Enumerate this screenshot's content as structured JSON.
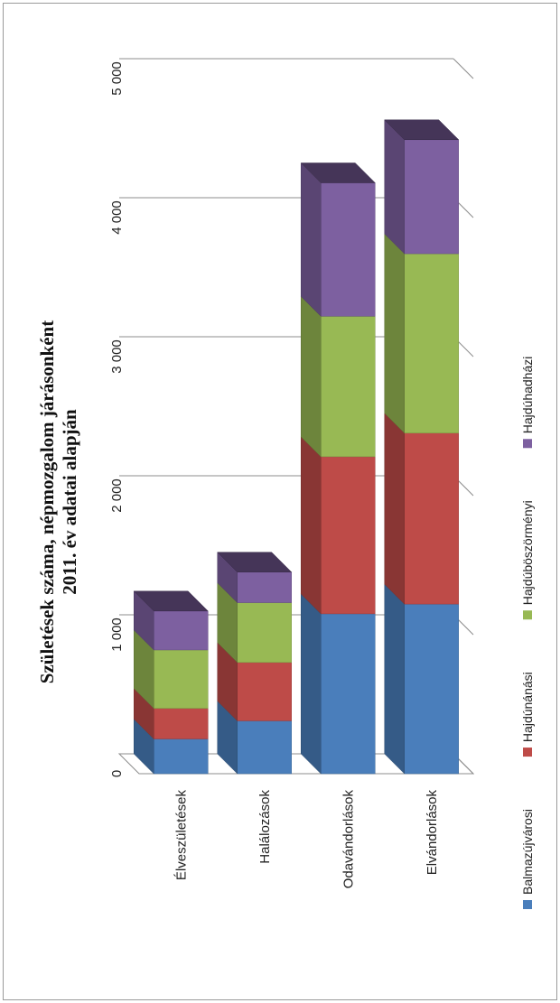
{
  "chart_data": {
    "type": "bar",
    "stacked": true,
    "orientation": "horizontal",
    "title_lines": [
      "Születések száma, népmozgalom járásonként",
      "2011. év adatai alapján"
    ],
    "categories": [
      "Élveszületések",
      "Halálozások",
      "Odavándorlások",
      "Elvándorlások"
    ],
    "series": [
      {
        "name": "Balmazújvárosi",
        "color": "#4a7ebb",
        "values": [
          250,
          380,
          1150,
          1220
        ]
      },
      {
        "name": "Hajdúnánási",
        "color": "#be4b48",
        "values": [
          220,
          420,
          1130,
          1230
        ]
      },
      {
        "name": "Hajdúböszörményi",
        "color": "#98b954",
        "values": [
          420,
          430,
          1010,
          1290
        ]
      },
      {
        "name": "Hajdúhadházi",
        "color": "#7d60a0",
        "values": [
          280,
          220,
          960,
          820
        ]
      }
    ],
    "xlim": [
      0,
      5000
    ],
    "ticks": [
      0,
      1000,
      2000,
      3000,
      4000,
      5000
    ],
    "tick_labels": [
      "0",
      "1 000",
      "2 000",
      "3 000",
      "4 000",
      "5 000"
    ],
    "grid": true,
    "legend_position": "bottom"
  }
}
